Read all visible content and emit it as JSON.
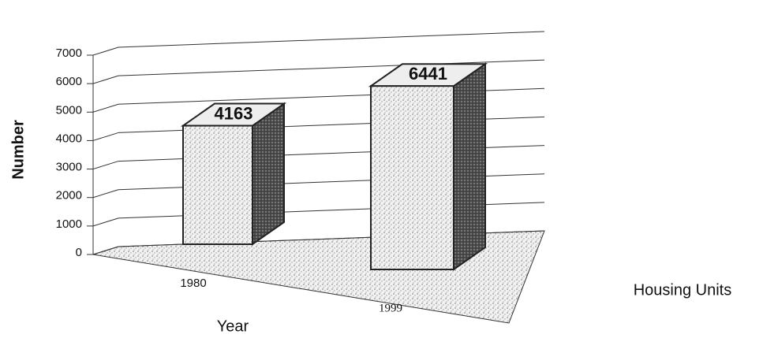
{
  "chart_data": {
    "type": "bar3d",
    "categories": [
      "1980",
      "1999"
    ],
    "series": [
      {
        "name": "Housing Units",
        "color": "#d9d9d9",
        "values": [
          4163,
          6441
        ]
      }
    ],
    "ylim": [
      0,
      7000
    ],
    "yticks": [
      0,
      1000,
      2000,
      3000,
      4000,
      5000,
      6000,
      7000
    ],
    "xlabel": "Year",
    "ylabel": "Number",
    "grid": true,
    "legend": "right"
  }
}
